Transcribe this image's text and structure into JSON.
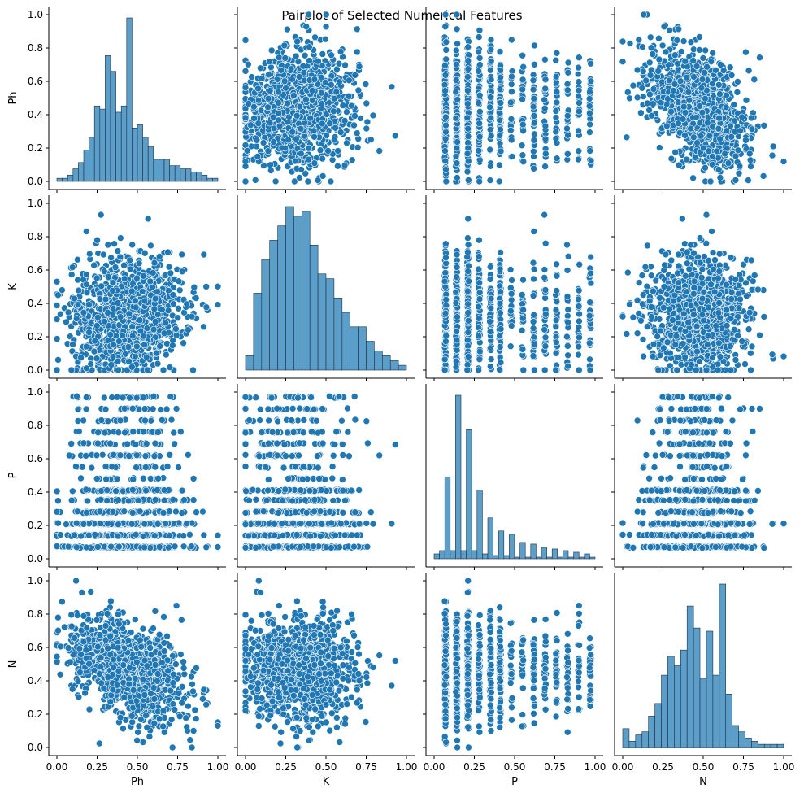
{
  "chart_data": {
    "type": "scatter",
    "title": "Pairplot of Selected Numerical Features",
    "variables": [
      "Ph",
      "K",
      "P",
      "N"
    ],
    "diag_kind": "hist",
    "ticks": [
      0.0,
      0.25,
      0.5,
      0.75,
      1.0
    ],
    "y_tick_labels": [
      "0.0",
      "0.2",
      "0.4",
      "0.6",
      "0.8",
      "1.0"
    ],
    "x_tick_labels": [
      "0.00",
      "0.25",
      "0.50",
      "0.75",
      "1.00"
    ],
    "xlim": [
      0,
      1
    ],
    "ylim": [
      0,
      1
    ],
    "colors": {
      "marker": "#1f77b4",
      "hist_face": "#5b9ec9",
      "hist_edge": "#1f2f3f",
      "axis": "#000000"
    },
    "histograms": {
      "Ph": {
        "bins": 30,
        "counts": [
          1,
          1,
          2,
          4,
          6,
          10,
          14,
          24,
          23,
          40,
          35,
          22,
          24,
          52,
          17,
          18,
          14,
          11,
          7,
          7,
          7,
          5,
          5,
          4,
          4,
          3,
          3,
          2,
          1,
          1
        ]
      },
      "K": {
        "bins": 20,
        "counts": [
          3,
          16,
          23,
          27,
          30,
          34,
          32,
          33,
          26,
          20,
          19,
          15,
          12,
          9,
          9,
          6,
          4,
          3,
          2,
          1
        ]
      },
      "P": {
        "bins": 30,
        "counts": [
          3,
          5,
          50,
          5,
          100,
          5,
          79,
          5,
          42,
          3,
          25,
          2,
          17,
          2,
          15,
          1,
          10,
          1,
          9,
          1,
          7,
          1,
          6,
          1,
          5,
          1,
          4,
          1,
          3,
          1
        ]
      },
      "N": {
        "bins": 25,
        "counts": [
          6,
          2,
          4,
          5,
          10,
          14,
          23,
          29,
          26,
          31,
          45,
          38,
          22,
          37,
          23,
          52,
          17,
          7,
          5,
          3,
          2,
          1,
          1,
          1,
          1
        ]
      }
    },
    "scatter_points": 1200,
    "correlations": {
      "Ph_K": 0.12,
      "Ph_P": 0.0,
      "Ph_N": -0.45,
      "K_P": 0.0,
      "K_N": 0.05,
      "P_N": 0.0
    }
  }
}
